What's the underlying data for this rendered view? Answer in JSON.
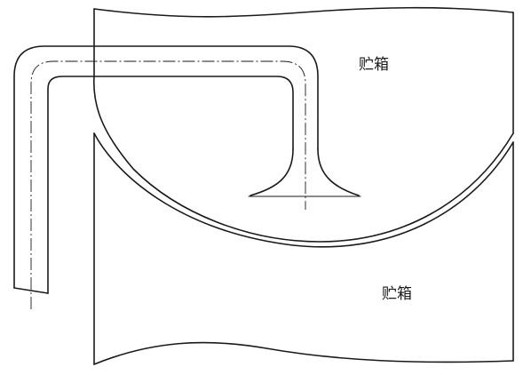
{
  "diagram": {
    "labels": {
      "upper_tank": "贮箱",
      "lower_tank": "贮箱"
    },
    "stroke_color": "#1a1a1a",
    "background_color": "#ffffff"
  }
}
